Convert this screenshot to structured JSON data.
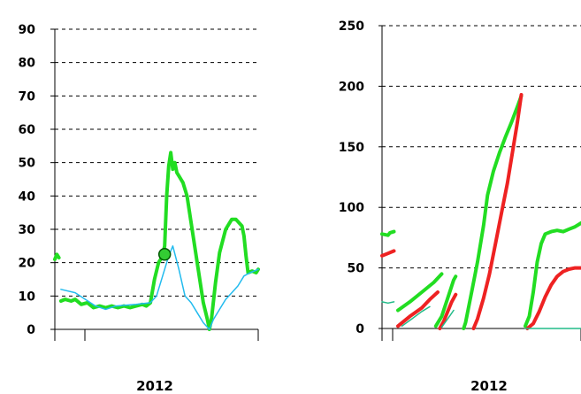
{
  "chart_data": [
    {
      "type": "line",
      "title": "",
      "xlabel": "2012",
      "ylabel": "",
      "ylim": [
        0,
        90
      ],
      "y_ticks": [
        0,
        10,
        20,
        30,
        40,
        50,
        60,
        70,
        80,
        90
      ],
      "grid": "dashed horizontal",
      "x_range": [
        0,
        100
      ],
      "series": [
        {
          "color": "#22dd22",
          "style": "thick",
          "points": [
            [
              0,
              21
            ],
            [
              1,
              22.5
            ],
            [
              2,
              21.5
            ],
            [
              3,
              null
            ],
            [
              3,
              8.5
            ],
            [
              5,
              9
            ],
            [
              8,
              8.5
            ],
            [
              10,
              9
            ],
            [
              13,
              7.5
            ],
            [
              16,
              8
            ],
            [
              19,
              6.5
            ],
            [
              22,
              7
            ],
            [
              25,
              6.5
            ],
            [
              28,
              7
            ],
            [
              31,
              6.5
            ],
            [
              34,
              7
            ],
            [
              37,
              6.5
            ],
            [
              40,
              7
            ],
            [
              43,
              7.5
            ],
            [
              45,
              7
            ],
            [
              47,
              8
            ],
            [
              49,
              15
            ],
            [
              51,
              20
            ],
            [
              53,
              22
            ],
            [
              54,
              25
            ],
            [
              55,
              40
            ],
            [
              56,
              49
            ],
            [
              57,
              53
            ],
            [
              58,
              48
            ],
            [
              59,
              50
            ],
            [
              60,
              47
            ],
            [
              61,
              46
            ],
            [
              62,
              45
            ],
            [
              63,
              44
            ],
            [
              64,
              42
            ],
            [
              65,
              40
            ],
            [
              67,
              32
            ],
            [
              70,
              20
            ],
            [
              73,
              8
            ],
            [
              75,
              3
            ],
            [
              76,
              0
            ],
            [
              77,
              3
            ],
            [
              79,
              14
            ],
            [
              81,
              23
            ],
            [
              84,
              30
            ],
            [
              87,
              33
            ],
            [
              89,
              33
            ],
            [
              92,
              31
            ],
            [
              93,
              28
            ],
            [
              94,
              22
            ],
            [
              95,
              17
            ],
            [
              97,
              17.5
            ],
            [
              99,
              17
            ],
            [
              100,
              18
            ]
          ]
        },
        {
          "color": "#22bbee",
          "style": "thin",
          "points": [
            [
              3,
              12
            ],
            [
              10,
              11
            ],
            [
              15,
              9
            ],
            [
              20,
              7
            ],
            [
              25,
              6
            ],
            [
              30,
              7
            ],
            [
              40,
              7.5
            ],
            [
              47,
              8
            ],
            [
              50,
              10
            ],
            [
              53,
              16
            ],
            [
              56,
              22
            ],
            [
              58,
              25
            ],
            [
              61,
              18
            ],
            [
              64,
              10
            ],
            [
              67,
              8
            ],
            [
              70,
              5
            ],
            [
              73,
              2
            ],
            [
              76,
              0
            ],
            [
              78,
              3
            ],
            [
              81,
              6
            ],
            [
              84,
              9
            ],
            [
              87,
              11
            ],
            [
              90,
              13
            ],
            [
              93,
              16
            ],
            [
              96,
              17
            ],
            [
              100,
              18
            ]
          ]
        },
        {
          "color": "#11aa11",
          "style": "marker",
          "points": [
            [
              54,
              22.5
            ]
          ]
        }
      ]
    },
    {
      "type": "line",
      "title": "",
      "xlabel": "2012",
      "ylabel": "",
      "ylim": [
        0,
        250
      ],
      "y_ticks": [
        0,
        50,
        100,
        150,
        200,
        250
      ],
      "grid": "dashed horizontal",
      "x_range": [
        0,
        100
      ],
      "series": [
        {
          "color": "#22dd22",
          "style": "thick",
          "points": [
            [
              0,
              78
            ],
            [
              3,
              77
            ],
            [
              4,
              79
            ],
            [
              6,
              80
            ]
          ]
        },
        {
          "color": "#ee2222",
          "style": "thick",
          "points": [
            [
              0,
              60
            ],
            [
              3,
              62
            ],
            [
              6,
              64
            ]
          ]
        },
        {
          "color": "#22bb88",
          "style": "thin",
          "points": [
            [
              0,
              22
            ],
            [
              3,
              21
            ],
            [
              6,
              22
            ]
          ]
        },
        {
          "color": "#22dd22",
          "style": "thick",
          "points": [
            [
              8,
              15
            ],
            [
              14,
              22
            ],
            [
              20,
              30
            ],
            [
              26,
              38
            ],
            [
              30,
              45
            ]
          ]
        },
        {
          "color": "#ee2222",
          "style": "thick",
          "points": [
            [
              8,
              2
            ],
            [
              14,
              10
            ],
            [
              20,
              17
            ],
            [
              24,
              24
            ],
            [
              28,
              30
            ]
          ]
        },
        {
          "color": "#22bb88",
          "style": "thin",
          "points": [
            [
              10,
              2
            ],
            [
              15,
              8
            ],
            [
              20,
              14
            ],
            [
              24,
              18
            ]
          ]
        },
        {
          "color": "#22dd22",
          "style": "thick",
          "points": [
            [
              27,
              2
            ],
            [
              30,
              10
            ],
            [
              32,
              20
            ],
            [
              34,
              30
            ],
            [
              36,
              40
            ],
            [
              37,
              43
            ]
          ]
        },
        {
          "color": "#ee2222",
          "style": "thick",
          "points": [
            [
              29,
              0
            ],
            [
              31,
              6
            ],
            [
              33,
              14
            ],
            [
              35,
              22
            ],
            [
              37,
              28
            ]
          ]
        },
        {
          "color": "#22bb88",
          "style": "thin",
          "points": [
            [
              30,
              1
            ],
            [
              33,
              8
            ],
            [
              36,
              15
            ]
          ]
        },
        {
          "color": "#22dd22",
          "style": "thick",
          "points": [
            [
              41,
              0
            ],
            [
              42,
              5
            ],
            [
              45,
              30
            ],
            [
              48,
              55
            ],
            [
              51,
              85
            ],
            [
              53,
              110
            ],
            [
              56,
              130
            ],
            [
              59,
              145
            ],
            [
              62,
              158
            ],
            [
              65,
              170
            ],
            [
              68,
              183
            ],
            [
              70,
              192
            ]
          ]
        },
        {
          "color": "#ee2222",
          "style": "thick",
          "points": [
            [
              46,
              0
            ],
            [
              48,
              8
            ],
            [
              51,
              25
            ],
            [
              54,
              45
            ],
            [
              57,
              70
            ],
            [
              60,
              95
            ],
            [
              63,
              120
            ],
            [
              66,
              150
            ],
            [
              68,
              170
            ],
            [
              70,
              193
            ]
          ]
        },
        {
          "color": "#22dd22",
          "style": "thick",
          "points": [
            [
              72,
              2
            ],
            [
              74,
              10
            ],
            [
              76,
              30
            ],
            [
              78,
              55
            ],
            [
              80,
              70
            ],
            [
              82,
              78
            ],
            [
              85,
              80
            ],
            [
              88,
              81
            ],
            [
              91,
              80
            ],
            [
              94,
              82
            ],
            [
              97,
              84
            ],
            [
              100,
              87
            ]
          ]
        },
        {
          "color": "#ee2222",
          "style": "thick",
          "points": [
            [
              73,
              0
            ],
            [
              76,
              4
            ],
            [
              79,
              14
            ],
            [
              82,
              26
            ],
            [
              85,
              36
            ],
            [
              88,
              43
            ],
            [
              91,
              47
            ],
            [
              94,
              49
            ],
            [
              97,
              50
            ],
            [
              100,
              50
            ]
          ]
        },
        {
          "color": "#22bb88",
          "style": "thin",
          "points": [
            [
              72,
              0
            ],
            [
              100,
              0
            ]
          ]
        }
      ]
    }
  ]
}
